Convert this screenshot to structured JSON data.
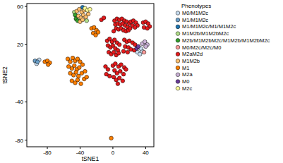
{
  "chart_data": {
    "type": "scatter",
    "x_label": "tSNE1",
    "y_label": "tSNE2",
    "legend_title": "Phenotypes",
    "legend": "right",
    "marker": "circle",
    "xlim": [
      -105,
      50
    ],
    "ylim": [
      -87,
      63
    ],
    "xticks": [
      -80,
      -40,
      0,
      40
    ],
    "yticks": [
      60,
      20,
      -40,
      -80
    ],
    "series": [
      {
        "name": "M0/M1M2c",
        "color": "#c6dbef",
        "x": [
          -90,
          -93,
          30,
          33,
          36,
          34
        ],
        "y": [
          4,
          0,
          12,
          10,
          13,
          16
        ]
      },
      {
        "name": "M1/M1M2c",
        "color": "#6a9fc8",
        "x": [
          -95,
          -92
        ],
        "y": [
          3,
          2
        ]
      },
      {
        "name": "M1/M1M2c/M1/M1M2c",
        "color": "#1f78b4",
        "x": [
          -37
        ],
        "y": [
          59
        ]
      },
      {
        "name": "M1M2b/M1M2bM2c",
        "color": "#b2df8a",
        "x": [
          -47,
          -32
        ],
        "y": [
          54,
          45
        ]
      },
      {
        "name": "M2b/M1M2bM2c/M1M2b/M1M2bM2c",
        "color": "#33a02c",
        "x": [
          -46,
          -45,
          -43
        ],
        "y": [
          51,
          47,
          45
        ]
      },
      {
        "name": "M0/M2c/M2c/M0",
        "color": "#fb9a99",
        "x": [
          38
        ],
        "y": [
          12
        ]
      },
      {
        "name": "M2aM2d",
        "color": "#e31a1c",
        "x": [
          2,
          5,
          8,
          11,
          14,
          17,
          20,
          3,
          6,
          9,
          12,
          15,
          18,
          4,
          7,
          10,
          13,
          16,
          1,
          19,
          22,
          25,
          28,
          30,
          24,
          27,
          21,
          37,
          40,
          43,
          45,
          38,
          42,
          -7,
          -4,
          -1,
          2,
          5,
          8,
          -6,
          -3,
          0,
          3,
          6,
          -5,
          -2,
          1,
          4,
          7,
          14,
          17,
          20,
          24,
          27,
          15,
          19,
          22,
          26,
          18,
          13,
          0,
          3,
          7,
          10,
          14,
          2,
          5,
          9,
          13,
          16,
          1,
          4,
          8,
          12,
          6,
          -9,
          -6,
          -8,
          -4,
          -14,
          -11
        ],
        "y": [
          45,
          47,
          46,
          47,
          45,
          44,
          42,
          41,
          42,
          41,
          42,
          40,
          38,
          37,
          36,
          37,
          35,
          34,
          34,
          35,
          44,
          45,
          43,
          40,
          40,
          38,
          37,
          43,
          44,
          42,
          39,
          38,
          37,
          24,
          26,
          23,
          25,
          22,
          20,
          19,
          17,
          19,
          16,
          14,
          12,
          10,
          12,
          9,
          11,
          25,
          23,
          24,
          22,
          20,
          18,
          17,
          15,
          14,
          12,
          13,
          -2,
          0,
          -3,
          -1,
          -4,
          -7,
          -10,
          -8,
          -11,
          -6,
          -14,
          -17,
          -15,
          -18,
          -21,
          -3,
          -6,
          -11,
          -13,
          46,
          48
        ]
      },
      {
        "name": "M1M2b",
        "color": "#fdbf6f",
        "x": [
          -44,
          -41,
          -38,
          -35,
          -42,
          -39,
          -36,
          -33,
          -30,
          -40,
          -37
        ],
        "y": [
          55,
          57,
          54,
          56,
          50,
          48,
          51,
          49,
          52,
          44,
          46
        ]
      },
      {
        "name": "M1",
        "color": "#ff7f00",
        "x": [
          -55,
          -52,
          -49,
          -46,
          -43,
          -40,
          -54,
          -50,
          -47,
          -44,
          -41,
          -37,
          -52,
          -48,
          -45,
          -42,
          -38,
          -34,
          -50,
          -46,
          -43,
          -39,
          -35,
          -32,
          -26,
          -23,
          -20,
          -24,
          -21,
          -18,
          -83,
          -80,
          -77,
          -79,
          -2
        ],
        "y": [
          5,
          2,
          6,
          3,
          5,
          2,
          -3,
          -5,
          -2,
          -6,
          -4,
          -1,
          -10,
          -12,
          -9,
          -13,
          -10,
          -8,
          -18,
          -20,
          -17,
          -21,
          -16,
          -14,
          37,
          38,
          35,
          32,
          30,
          33,
          2,
          3,
          1,
          -1,
          -78
        ]
      },
      {
        "name": "M2a",
        "color": "#cab2d6",
        "x": [
          36,
          39,
          42,
          40
        ],
        "y": [
          21,
          23,
          20,
          18
        ]
      },
      {
        "name": "M0",
        "color": "#6a3d9a",
        "x": [
          29,
          31
        ],
        "y": [
          16,
          18
        ]
      },
      {
        "name": "M2c",
        "color": "#ffff99",
        "x": [
          -34,
          -31,
          -28
        ],
        "y": [
          58,
          56,
          57
        ]
      }
    ]
  }
}
